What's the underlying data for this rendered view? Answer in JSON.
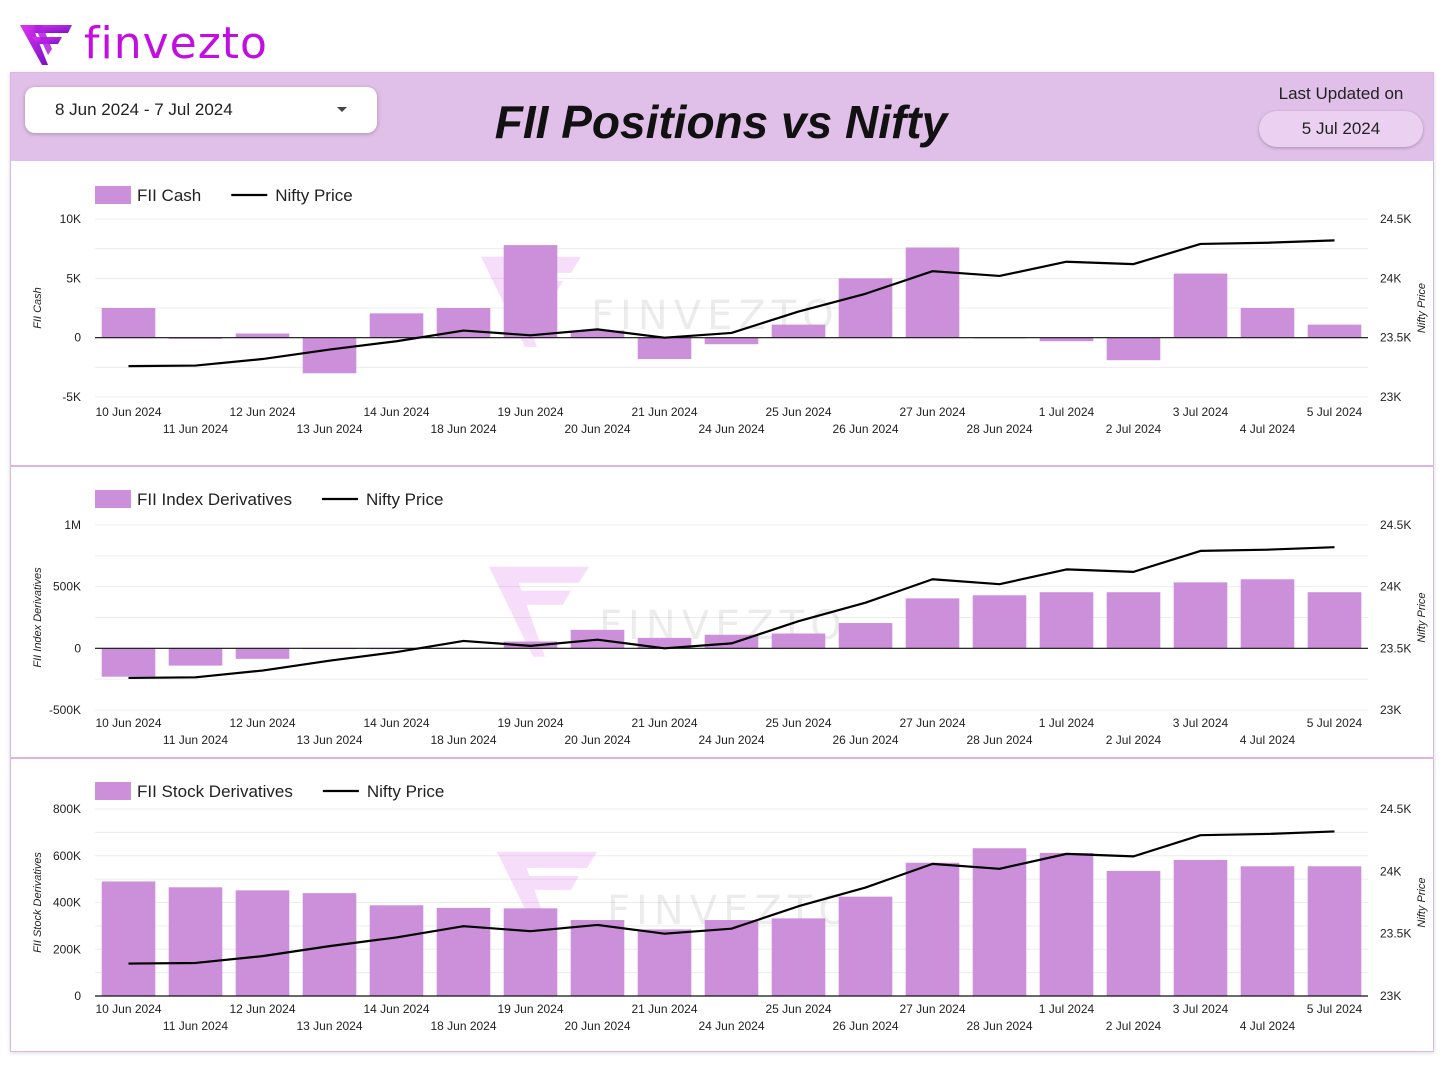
{
  "brand": {
    "name": "finvezto"
  },
  "header": {
    "date_range": "8 Jun 2024 - 7 Jul 2024",
    "title": "FII Positions vs Nifty",
    "last_updated_label": "Last Updated on",
    "last_updated_value": "5 Jul 2024"
  },
  "watermark": "FINVEZTO",
  "colors": {
    "bar": "#cc8fd9",
    "line": "#000000",
    "accent": "#c20ee0",
    "header_bg": "#e0bfe8"
  },
  "chart_data": [
    {
      "type": "bar",
      "categories": [
        "10 Jun 2024",
        "11 Jun 2024",
        "12 Jun 2024",
        "13 Jun 2024",
        "14 Jun 2024",
        "18 Jun 2024",
        "19 Jun 2024",
        "20 Jun 2024",
        "21 Jun 2024",
        "24 Jun 2024",
        "25 Jun 2024",
        "26 Jun 2024",
        "27 Jun 2024",
        "28 Jun 2024",
        "1 Jul 2024",
        "2 Jul 2024",
        "3 Jul 2024",
        "4 Jul 2024",
        "5 Jul 2024"
      ],
      "series": [
        {
          "name": "FII Cash",
          "type": "bar",
          "axis": "left",
          "values": [
            2500,
            -100,
            350,
            -3000,
            2050,
            2500,
            7800,
            600,
            -1800,
            -550,
            1100,
            5000,
            7600,
            -50,
            -300,
            -1900,
            5400,
            2500,
            1100
          ]
        },
        {
          "name": "Nifty Price",
          "type": "line",
          "axis": "right",
          "values": [
            23260,
            23265,
            23320,
            23400,
            23470,
            23560,
            23520,
            23570,
            23500,
            23540,
            23720,
            23870,
            24060,
            24020,
            24140,
            24120,
            24290,
            24300,
            24320
          ]
        }
      ],
      "ylabel": "FII Cash",
      "y2label": "Nifty Price",
      "ylim": [
        -5000,
        10000
      ],
      "y2lim": [
        23000,
        24500
      ],
      "yticks": [
        "10K",
        "5K",
        "0",
        "-5K"
      ],
      "y2ticks": [
        "24.5K",
        "24K",
        "23.5K",
        "23K"
      ],
      "legend": "top-left",
      "grid": true
    },
    {
      "type": "bar",
      "categories": [
        "10 Jun 2024",
        "11 Jun 2024",
        "12 Jun 2024",
        "13 Jun 2024",
        "14 Jun 2024",
        "18 Jun 2024",
        "19 Jun 2024",
        "20 Jun 2024",
        "21 Jun 2024",
        "24 Jun 2024",
        "25 Jun 2024",
        "26 Jun 2024",
        "27 Jun 2024",
        "28 Jun 2024",
        "1 Jul 2024",
        "2 Jul 2024",
        "3 Jul 2024",
        "4 Jul 2024",
        "5 Jul 2024"
      ],
      "series": [
        {
          "name": "FII Index Derivatives",
          "type": "bar",
          "axis": "left",
          "values": [
            -230000,
            -140000,
            -85000,
            -5000,
            -5000,
            5000,
            55000,
            150000,
            85000,
            110000,
            120000,
            205000,
            405000,
            430000,
            455000,
            455000,
            535000,
            560000,
            455000
          ]
        },
        {
          "name": "Nifty Price",
          "type": "line",
          "axis": "right",
          "values": [
            23260,
            23265,
            23320,
            23400,
            23470,
            23560,
            23520,
            23570,
            23500,
            23540,
            23720,
            23870,
            24060,
            24020,
            24140,
            24120,
            24290,
            24300,
            24320
          ]
        }
      ],
      "ylabel": "FII Index Derivatives",
      "y2label": "Nifty Price",
      "ylim": [
        -500000,
        1000000
      ],
      "y2lim": [
        23000,
        24500
      ],
      "yticks": [
        "1M",
        "500K",
        "0",
        "-500K"
      ],
      "y2ticks": [
        "24.5K",
        "24K",
        "23.5K",
        "23K"
      ],
      "legend": "top-left",
      "grid": true
    },
    {
      "type": "bar",
      "categories": [
        "10 Jun 2024",
        "11 Jun 2024",
        "12 Jun 2024",
        "13 Jun 2024",
        "14 Jun 2024",
        "18 Jun 2024",
        "19 Jun 2024",
        "20 Jun 2024",
        "21 Jun 2024",
        "24 Jun 2024",
        "25 Jun 2024",
        "26 Jun 2024",
        "27 Jun 2024",
        "28 Jun 2024",
        "1 Jul 2024",
        "2 Jul 2024",
        "3 Jul 2024",
        "4 Jul 2024",
        "5 Jul 2024"
      ],
      "series": [
        {
          "name": "FII Stock Derivatives",
          "type": "bar",
          "axis": "left",
          "values": [
            490000,
            465000,
            452000,
            440000,
            388000,
            377000,
            375000,
            325000,
            285000,
            325000,
            332000,
            425000,
            570000,
            632000,
            612000,
            535000,
            582000,
            555000,
            555000
          ]
        },
        {
          "name": "Nifty Price",
          "type": "line",
          "axis": "right",
          "values": [
            23260,
            23265,
            23320,
            23400,
            23470,
            23560,
            23520,
            23570,
            23500,
            23540,
            23720,
            23870,
            24060,
            24020,
            24140,
            24120,
            24290,
            24300,
            24320
          ]
        }
      ],
      "ylabel": "FII Stock Derivatives",
      "y2label": "Nifty Price",
      "ylim": [
        0,
        800000
      ],
      "y2lim": [
        23000,
        24500
      ],
      "yticks": [
        "800K",
        "600K",
        "400K",
        "200K",
        "0"
      ],
      "y2ticks": [
        "24.5K",
        "24K",
        "23.5K",
        "23K"
      ],
      "legend": "top-left",
      "grid": true
    }
  ]
}
